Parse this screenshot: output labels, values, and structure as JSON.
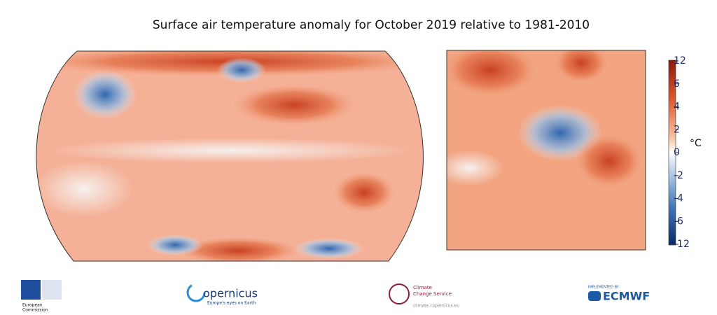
{
  "title": "Surface air temperature anomaly for October 2019 relative to 1981-2010",
  "colorbar": {
    "ticks": [
      12,
      6,
      4,
      2,
      0,
      -2,
      -4,
      -6,
      -12
    ],
    "unit": "°C"
  },
  "logos": {
    "ec": [
      "European",
      "Commission"
    ],
    "copernicus": {
      "name": "opernicus",
      "tagline": "Europe's eyes on Earth"
    },
    "c3s": {
      "name": [
        "Climate",
        "Change Service"
      ],
      "url": "climate.copernicus.eu"
    },
    "ecmwf": {
      "note": "IMPLEMENTED BY",
      "name": "ECMWF"
    }
  }
}
